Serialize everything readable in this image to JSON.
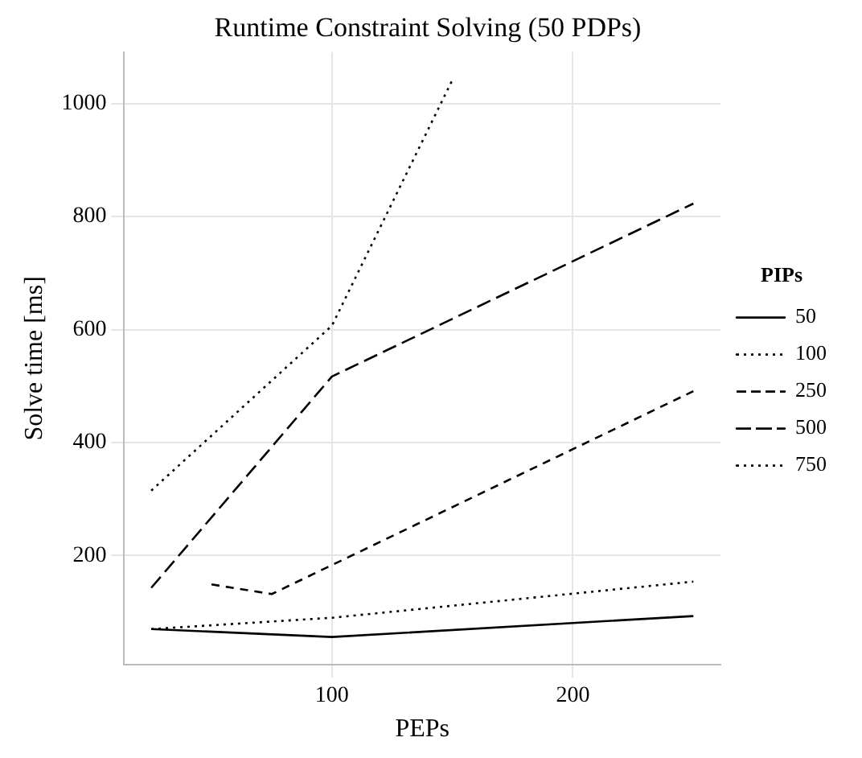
{
  "chart_data": {
    "type": "line",
    "title": "Runtime Constraint Solving (50 PDPs)",
    "xlabel": "PEPs",
    "ylabel": "Solve time [ms]",
    "legend_title": "PIPs",
    "legend": "right",
    "grid": true,
    "marker": "none",
    "xlim": [
      13.75,
      261.25
    ],
    "xticks": [
      100,
      200
    ],
    "ylim": [
      7,
      1091
    ],
    "yticks": [
      200,
      400,
      600,
      800,
      1000
    ],
    "series": [
      {
        "name": "50",
        "color": "#000000",
        "line_style": "solid",
        "x": [
          25,
          100,
          250
        ],
        "values": [
          70,
          56,
          93
        ]
      },
      {
        "name": "100",
        "color": "#000000",
        "line_style": "dotted",
        "x": [
          25,
          100,
          250
        ],
        "values": [
          70,
          90,
          154
        ]
      },
      {
        "name": "250",
        "color": "#000000",
        "line_style": "dashed",
        "x": [
          50,
          75,
          250
        ],
        "values": [
          149,
          132,
          491
        ]
      },
      {
        "name": "500",
        "color": "#000000",
        "line_style": "longdash",
        "x": [
          25,
          100,
          250
        ],
        "values": [
          143,
          517,
          823
        ]
      },
      {
        "name": "750",
        "color": "#000000",
        "line_style": "dotted",
        "x": [
          25,
          100,
          150
        ],
        "values": [
          315,
          607,
          1042
        ]
      }
    ]
  }
}
